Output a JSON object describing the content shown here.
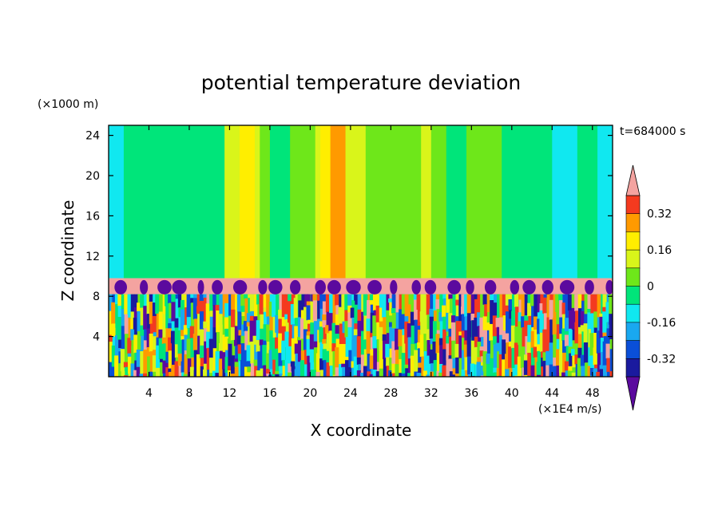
{
  "chart_data": {
    "type": "heatmap",
    "title": "potential temperature deviation",
    "xlabel": "X coordinate",
    "ylabel": "Z coordinate",
    "x_unit": "(×1E4 m/s)",
    "y_unit": "(×1000 m)",
    "time_label": "t=684000 s",
    "xlim": [
      0,
      50
    ],
    "ylim": [
      0,
      25
    ],
    "x_ticks": [
      4,
      8,
      12,
      16,
      20,
      24,
      28,
      32,
      36,
      40,
      44,
      48
    ],
    "y_ticks": [
      4,
      8,
      12,
      16,
      20,
      24
    ],
    "colorbar": {
      "levels": [
        -0.4,
        -0.32,
        -0.24,
        -0.16,
        -0.08,
        0,
        0.08,
        0.16,
        0.24,
        0.32,
        0.4
      ],
      "labels": [
        "0.32",
        "0.16",
        "0",
        "-0.16",
        "-0.32"
      ],
      "label_values": [
        0.32,
        0.16,
        0,
        -0.16,
        -0.32
      ],
      "colors": [
        "#5b0a9e",
        "#1a1a9e",
        "#0a4fd8",
        "#19a8f0",
        "#10e8f0",
        "#00e57a",
        "#6ee71a",
        "#d9f51a",
        "#ffee00",
        "#ff9a00",
        "#f43a1f",
        "#f4a3a0"
      ],
      "extend": "both"
    },
    "field_description": {
      "lower_layer_z": [
        0,
        8.2
      ],
      "stable_band_z": [
        8.2,
        9.8
      ],
      "upper_layer_z": [
        9.8,
        25
      ]
    },
    "upper_column_bands": [
      {
        "x": [
          0,
          1.5
        ],
        "value": -0.14
      },
      {
        "x": [
          1.5,
          11.5
        ],
        "value": -0.03
      },
      {
        "x": [
          11.5,
          12.5
        ],
        "value": 0.1
      },
      {
        "x": [
          12.5,
          13.0
        ],
        "value": 0.15
      },
      {
        "x": [
          13.0,
          14.5
        ],
        "value": 0.2
      },
      {
        "x": [
          14.5,
          15.0
        ],
        "value": 0.15
      },
      {
        "x": [
          15.0,
          16.0
        ],
        "value": 0.03
      },
      {
        "x": [
          16.0,
          18.0
        ],
        "value": -0.03
      },
      {
        "x": [
          18.0,
          20.5
        ],
        "value": 0.05
      },
      {
        "x": [
          20.5,
          21.0
        ],
        "value": 0.15
      },
      {
        "x": [
          21.0,
          22.0
        ],
        "value": 0.2
      },
      {
        "x": [
          22.0,
          23.5
        ],
        "value": 0.24
      },
      {
        "x": [
          23.5,
          24.5
        ],
        "value": 0.15
      },
      {
        "x": [
          24.5,
          25.5
        ],
        "value": 0.1
      },
      {
        "x": [
          25.5,
          31.0
        ],
        "value": 0.03
      },
      {
        "x": [
          31.0,
          32.0
        ],
        "value": 0.1
      },
      {
        "x": [
          32.0,
          33.5
        ],
        "value": 0.04
      },
      {
        "x": [
          33.5,
          35.5
        ],
        "value": -0.03
      },
      {
        "x": [
          35.5,
          37.5
        ],
        "value": 0.03
      },
      {
        "x": [
          37.5,
          39.0
        ],
        "value": 0.04
      },
      {
        "x": [
          39.0,
          44.0
        ],
        "value": -0.03
      },
      {
        "x": [
          44.0,
          46.5
        ],
        "value": -0.13
      },
      {
        "x": [
          46.5,
          48.5
        ],
        "value": -0.03
      },
      {
        "x": [
          48.5,
          50.0
        ],
        "value": -0.14
      }
    ]
  }
}
